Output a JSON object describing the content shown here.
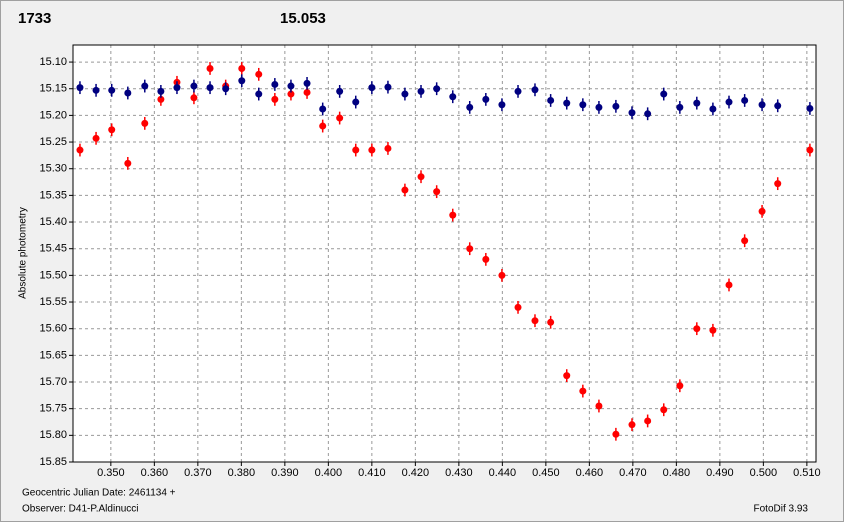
{
  "chart_data": {
    "type": "scatter",
    "y_label": "Absolute photometry",
    "footer_date": "Geocentric Julian Date: 2461134 +",
    "footer_observer": "Observer: D41-P.Aldinucci",
    "footer_software": "FotoDif 3.93",
    "x": [
      0.3429,
      0.3466,
      0.3502,
      0.3539,
      0.3578,
      0.3615,
      0.3652,
      0.3691,
      0.3728,
      0.3764,
      0.3801,
      0.384,
      0.3877,
      0.3914,
      0.3951,
      0.3987,
      0.4026,
      0.4063,
      0.41,
      0.4137,
      0.4176,
      0.4213,
      0.4249,
      0.4286,
      0.4325,
      0.4362,
      0.4399,
      0.4436,
      0.4475,
      0.4511,
      0.4548,
      0.4585,
      0.4622,
      0.4661,
      0.4698,
      0.4734,
      0.4771,
      0.4808,
      0.4847,
      0.4884,
      0.4921,
      0.4957,
      0.4997,
      0.5033,
      0.5107
    ],
    "error": 0.012,
    "series": [
      {
        "name": "1733",
        "color": "#ff0000",
        "values": [
          15.265,
          15.243,
          15.227,
          15.29,
          15.215,
          15.17,
          15.138,
          15.167,
          15.112,
          15.145,
          15.112,
          15.123,
          15.17,
          15.16,
          15.157,
          15.22,
          15.205,
          15.265,
          15.265,
          15.262,
          15.34,
          15.315,
          15.343,
          15.387,
          15.45,
          15.47,
          15.5,
          15.56,
          15.585,
          15.588,
          15.688,
          15.717,
          15.745,
          15.798,
          15.78,
          15.773,
          15.752,
          15.707,
          15.6,
          15.603,
          15.518,
          15.435,
          15.38,
          15.328,
          15.265
        ]
      },
      {
        "name": "15.053",
        "color": "#000080",
        "values": [
          15.148,
          15.153,
          15.153,
          15.158,
          15.145,
          15.155,
          15.148,
          15.145,
          15.148,
          15.15,
          15.135,
          15.16,
          15.142,
          15.145,
          15.14,
          15.188,
          15.155,
          15.175,
          15.148,
          15.147,
          15.16,
          15.155,
          15.15,
          15.165,
          15.185,
          15.17,
          15.18,
          15.155,
          15.152,
          15.172,
          15.177,
          15.18,
          15.185,
          15.183,
          15.195,
          15.197,
          15.16,
          15.185,
          15.177,
          15.188,
          15.175,
          15.172,
          15.18,
          15.182,
          15.187
        ]
      }
    ],
    "xlim": [
      0.3413,
      0.5121
    ],
    "ylim": [
      15.068,
      15.85
    ],
    "y_inverted": true,
    "grid": true,
    "xticks": [
      {
        "value": 0.35,
        "label": "0.350"
      },
      {
        "value": 0.36,
        "label": "0.360"
      },
      {
        "value": 0.37,
        "label": "0.370"
      },
      {
        "value": 0.38,
        "label": "0.380"
      },
      {
        "value": 0.39,
        "label": "0.390"
      },
      {
        "value": 0.4,
        "label": "0.400"
      },
      {
        "value": 0.41,
        "label": "0.410"
      },
      {
        "value": 0.42,
        "label": "0.420"
      },
      {
        "value": 0.43,
        "label": "0.430"
      },
      {
        "value": 0.44,
        "label": "0.440"
      },
      {
        "value": 0.45,
        "label": "0.450"
      },
      {
        "value": 0.46,
        "label": "0.460"
      },
      {
        "value": 0.47,
        "label": "0.470"
      },
      {
        "value": 0.48,
        "label": "0.480"
      },
      {
        "value": 0.49,
        "label": "0.490"
      },
      {
        "value": 0.5,
        "label": "0.500"
      },
      {
        "value": 0.51,
        "label": "0.510"
      }
    ],
    "yticks": [
      {
        "value": 15.1,
        "label": "15.10"
      },
      15.15,
      {
        "value": 15.2,
        "label": "15.20"
      },
      15.25,
      {
        "value": 15.3,
        "label": "15.30"
      },
      15.35,
      {
        "value": 15.4,
        "label": "15.40"
      },
      15.45,
      {
        "value": 15.5,
        "label": "15.50"
      },
      15.55,
      {
        "value": 15.6,
        "label": "15.60"
      },
      15.65,
      {
        "value": 15.7,
        "label": "15.70"
      },
      15.75,
      {
        "value": 15.8,
        "label": "15.80"
      },
      15.85
    ]
  }
}
